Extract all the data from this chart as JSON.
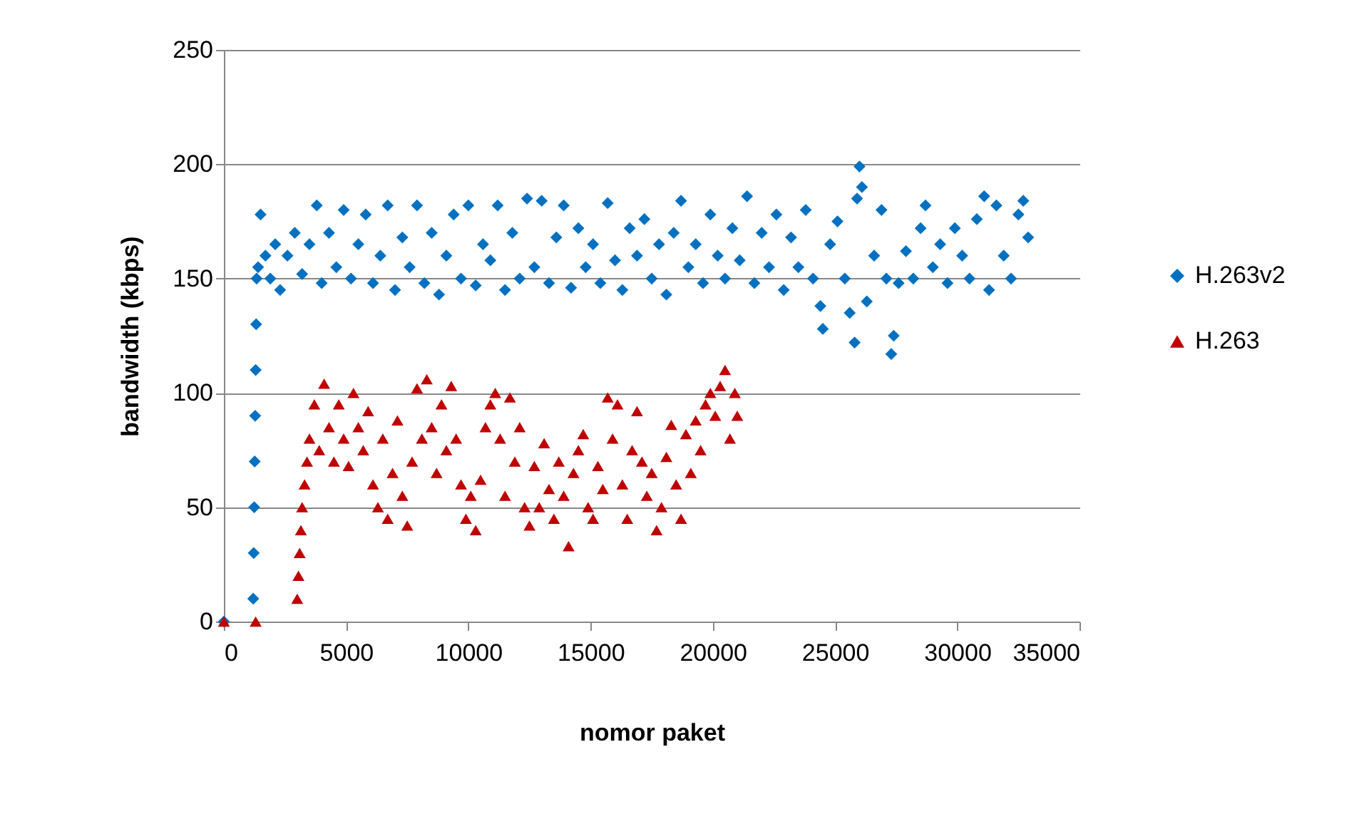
{
  "chart_data": {
    "type": "scatter",
    "xlabel": "nomor paket",
    "ylabel": "bandwidth (kbps)",
    "xlim": [
      0,
      35000
    ],
    "xticks": [
      0,
      5000,
      10000,
      15000,
      20000,
      25000,
      30000,
      35000
    ],
    "ylim": [
      0,
      250
    ],
    "yticks": [
      0,
      50,
      100,
      150,
      200,
      250
    ],
    "grid": "y",
    "legend": "right",
    "series": [
      {
        "name": "H.263v2",
        "color": "#0070c0",
        "marker": "diamond",
        "x": [
          0,
          1200,
          1220,
          1240,
          1260,
          1280,
          1300,
          1320,
          1340,
          1400,
          1500,
          1700,
          1900,
          2100,
          2300,
          2600,
          2900,
          3200,
          3500,
          3800,
          4000,
          4300,
          4600,
          4900,
          5200,
          5500,
          5800,
          6100,
          6400,
          6700,
          7000,
          7300,
          7600,
          7900,
          8200,
          8500,
          8800,
          9100,
          9400,
          9700,
          10000,
          10300,
          10600,
          10900,
          11200,
          11500,
          11800,
          12100,
          12400,
          12700,
          13000,
          13300,
          13600,
          13900,
          14200,
          14500,
          14800,
          15100,
          15400,
          15700,
          16000,
          16300,
          16600,
          16900,
          17200,
          17500,
          17800,
          18100,
          18400,
          18700,
          19000,
          19300,
          19600,
          19900,
          20200,
          20500,
          20800,
          21100,
          21400,
          21700,
          22000,
          22300,
          22600,
          22900,
          23200,
          23500,
          23800,
          24100,
          24400,
          24500,
          24800,
          25100,
          25400,
          25600,
          25800,
          25900,
          26000,
          26100,
          26300,
          26600,
          26900,
          27100,
          27300,
          27400,
          27600,
          27900,
          28200,
          28500,
          28700,
          29000,
          29300,
          29600,
          29900,
          30200,
          30500,
          30800,
          31100,
          31300,
          31600,
          31900,
          32200,
          32500,
          32700,
          32900
        ],
        "values": [
          0,
          10,
          30,
          50,
          70,
          90,
          110,
          130,
          150,
          155,
          178,
          160,
          150,
          165,
          145,
          160,
          170,
          152,
          165,
          182,
          148,
          170,
          155,
          180,
          150,
          165,
          178,
          148,
          160,
          182,
          145,
          168,
          155,
          182,
          148,
          170,
          143,
          160,
          178,
          150,
          182,
          147,
          165,
          158,
          182,
          145,
          170,
          150,
          185,
          155,
          184,
          148,
          168,
          182,
          146,
          172,
          155,
          165,
          148,
          183,
          158,
          145,
          172,
          160,
          176,
          150,
          165,
          143,
          170,
          184,
          155,
          165,
          148,
          178,
          160,
          150,
          172,
          158,
          186,
          148,
          170,
          155,
          178,
          145,
          168,
          155,
          180,
          150,
          138,
          128,
          165,
          175,
          150,
          135,
          122,
          185,
          199,
          190,
          140,
          160,
          180,
          150,
          117,
          125,
          148,
          162,
          150,
          172,
          182,
          155,
          165,
          148,
          172,
          160,
          150,
          176,
          186,
          145,
          182,
          160,
          150,
          178,
          184,
          168
        ]
      },
      {
        "name": "H.263",
        "color": "#c00000",
        "marker": "triangle",
        "x": [
          0,
          1300,
          3000,
          3050,
          3100,
          3150,
          3200,
          3300,
          3400,
          3500,
          3700,
          3900,
          4100,
          4300,
          4500,
          4700,
          4900,
          5100,
          5300,
          5500,
          5700,
          5900,
          6100,
          6300,
          6500,
          6700,
          6900,
          7100,
          7300,
          7500,
          7700,
          7900,
          8100,
          8300,
          8500,
          8700,
          8900,
          9100,
          9300,
          9500,
          9700,
          9900,
          10100,
          10300,
          10500,
          10700,
          10900,
          11100,
          11300,
          11500,
          11700,
          11900,
          12100,
          12300,
          12500,
          12700,
          12900,
          13100,
          13300,
          13500,
          13700,
          13900,
          14100,
          14300,
          14500,
          14700,
          14900,
          15100,
          15300,
          15500,
          15700,
          15900,
          16100,
          16300,
          16500,
          16700,
          16900,
          17100,
          17300,
          17500,
          17700,
          17900,
          18100,
          18300,
          18500,
          18700,
          18900,
          19100,
          19300,
          19500,
          19700,
          19900,
          20100,
          20300,
          20500,
          20700,
          20900,
          21000
        ],
        "values": [
          0,
          0,
          10,
          20,
          30,
          40,
          50,
          60,
          70,
          80,
          95,
          75,
          104,
          85,
          70,
          95,
          80,
          68,
          100,
          85,
          75,
          92,
          60,
          50,
          80,
          45,
          65,
          88,
          55,
          42,
          70,
          102,
          80,
          106,
          85,
          65,
          95,
          75,
          103,
          80,
          60,
          45,
          55,
          40,
          62,
          85,
          95,
          100,
          80,
          55,
          98,
          70,
          85,
          50,
          42,
          68,
          50,
          78,
          58,
          45,
          70,
          55,
          33,
          65,
          75,
          82,
          50,
          45,
          68,
          58,
          98,
          80,
          95,
          60,
          45,
          75,
          92,
          70,
          55,
          65,
          40,
          50,
          72,
          86,
          60,
          45,
          82,
          65,
          88,
          75,
          95,
          100,
          90,
          103,
          110,
          80,
          100,
          90
        ]
      }
    ]
  }
}
